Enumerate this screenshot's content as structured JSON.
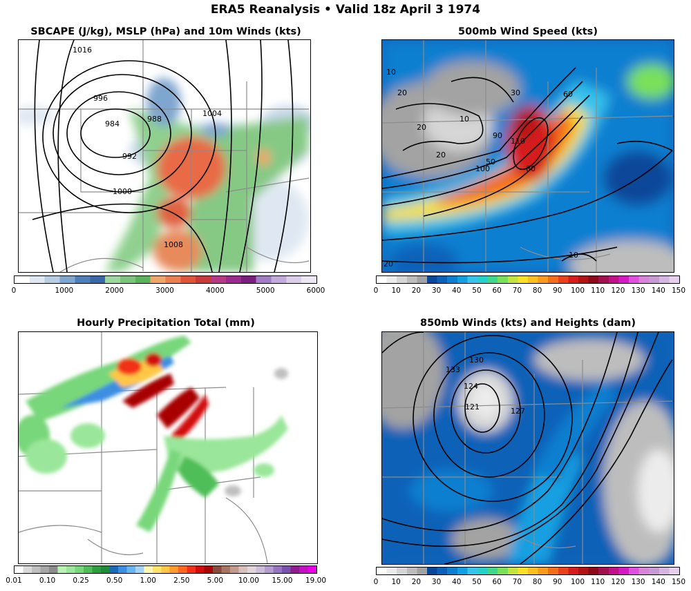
{
  "title": "ERA5 Reanalysis • Valid 18z April 3 1974",
  "panels": [
    {
      "id": "cape",
      "title": "SBCAPE (J/kg), MSLP (hPa) and 10m Winds (kts)",
      "contour_labels": [
        "1016",
        "996",
        "984",
        "988",
        "992",
        "1004",
        "1000",
        "1008"
      ],
      "colorbar": {
        "ticks": [
          "0",
          "1000",
          "2000",
          "3000",
          "4000",
          "5000",
          "6000"
        ],
        "colors": [
          "#ffffff",
          "#dfe8f2",
          "#b6cde4",
          "#7fa6cf",
          "#4f7fb9",
          "#3a67a8",
          "#9cd6a0",
          "#7cc47b",
          "#5cb25a",
          "#f0a66a",
          "#ec7f4f",
          "#e0553a",
          "#c93a3a",
          "#b43a85",
          "#9b2a8f",
          "#7a1f7d",
          "#a27dc4",
          "#c3a9dc",
          "#dccdea",
          "#ede6f4"
        ]
      }
    },
    {
      "id": "500mb",
      "title": "500mb Wind Speed (kts)",
      "contour_labels": [
        "10",
        "20",
        "10",
        "20",
        "60",
        "30",
        "100",
        "110",
        "80",
        "90",
        "10",
        "20",
        "20",
        "50"
      ],
      "colorbar": {
        "ticks": [
          "0",
          "10",
          "20",
          "30",
          "40",
          "50",
          "60",
          "70",
          "80",
          "90",
          "100",
          "110",
          "120",
          "130",
          "140",
          "150"
        ],
        "colors": [
          "#ffffff",
          "#ececec",
          "#d6d6d6",
          "#bdbdbd",
          "#a3a3a3",
          "#08479a",
          "#0b62b8",
          "#0d7fd0",
          "#13a0e2",
          "#36c3ec",
          "#25d1c8",
          "#3fd78c",
          "#7ae05a",
          "#c4e33c",
          "#fae127",
          "#fbbf22",
          "#f99a1c",
          "#f26e1a",
          "#e8411b",
          "#d61c1c",
          "#b21313",
          "#8b0b1b",
          "#a3104f",
          "#c0118a",
          "#d61ac3",
          "#e14fe0",
          "#d884d8",
          "#c89ad4",
          "#d6b5e2",
          "#e7cfee"
        ]
      }
    },
    {
      "id": "precip",
      "title": "Hourly Precipitation Total (mm)",
      "colorbar": {
        "ticks": [
          "0.01",
          "0.10",
          "0.25",
          "0.50",
          "1.00",
          "2.50",
          "5.00",
          "10.00",
          "15.00",
          "19.00"
        ],
        "colors": [
          "#ffffff",
          "#d9d9d9",
          "#bfbfbf",
          "#a6a6a6",
          "#8c8c8c",
          "#b9f3b1",
          "#9ae69a",
          "#78d77a",
          "#4fbe58",
          "#2e9f3e",
          "#1f8b38",
          "#1a6ab7",
          "#3c8ee0",
          "#6ab4f1",
          "#a3d4f8",
          "#fff7b0",
          "#ffe36b",
          "#ffc745",
          "#ff9a2d",
          "#ff6620",
          "#f23019",
          "#d10c0c",
          "#a80606",
          "#8a4a3f",
          "#a87562",
          "#c39b8c",
          "#d9c1bb",
          "#e2d4d9",
          "#cdbddb",
          "#b49bd0",
          "#9774c0",
          "#7a52ae",
          "#8e1c8e",
          "#c20fc2",
          "#e800e8"
        ]
      }
    },
    {
      "id": "850mb",
      "title": "850mb Winds (kts) and Heights (dam)",
      "contour_labels": [
        "133",
        "130",
        "124",
        "121",
        "127"
      ],
      "colorbar": {
        "ticks": [
          "0",
          "10",
          "20",
          "30",
          "40",
          "50",
          "60",
          "70",
          "80",
          "90",
          "100",
          "110",
          "120",
          "130",
          "140",
          "150"
        ],
        "colors": [
          "#ffffff",
          "#ececec",
          "#d6d6d6",
          "#bdbdbd",
          "#a3a3a3",
          "#08479a",
          "#0b62b8",
          "#0d7fd0",
          "#13a0e2",
          "#36c3ec",
          "#25d1c8",
          "#3fd78c",
          "#7ae05a",
          "#c4e33c",
          "#fae127",
          "#fbbf22",
          "#f99a1c",
          "#f26e1a",
          "#e8411b",
          "#d61c1c",
          "#b21313",
          "#8b0b1b",
          "#a3104f",
          "#c0118a",
          "#d61ac3",
          "#e14fe0",
          "#d884d8",
          "#c89ad4",
          "#d6b5e2",
          "#e7cfee"
        ]
      }
    }
  ]
}
